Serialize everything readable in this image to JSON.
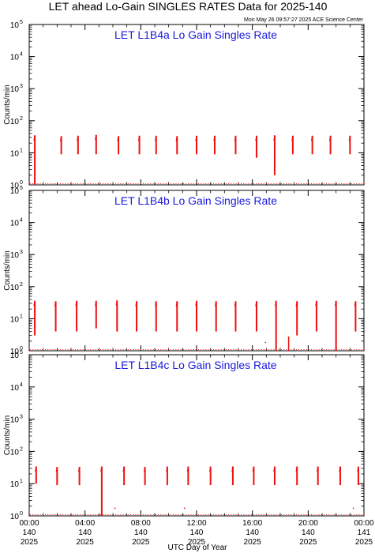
{
  "header": {
    "title": "LET ahead Lo-Gain SINGLES RATES Data for 2025-140",
    "timestamp": "Mon May 26 09:57:27 2025 ACE Science Center"
  },
  "x_axis": {
    "label": "UTC Day of Year",
    "ticks": [
      {
        "time": "00:00",
        "doy": "140",
        "year": "2025"
      },
      {
        "time": "04:00",
        "doy": "140",
        "year": "2025"
      },
      {
        "time": "08:00",
        "doy": "140",
        "year": "2025"
      },
      {
        "time": "12:00",
        "doy": "140",
        "year": "2025"
      },
      {
        "time": "16:00",
        "doy": "140",
        "year": "2025"
      },
      {
        "time": "20:00",
        "doy": "140",
        "year": "2025"
      },
      {
        "time": "00:00",
        "doy": "141",
        "year": "2025"
      }
    ]
  },
  "colors": {
    "data": "#ee1111",
    "title": "#1a1adf",
    "axis": "#000000"
  },
  "chart_data": [
    {
      "type": "line",
      "title": "LET L1B4a Lo Gain Singles Rate",
      "ylabel": "Counts/min",
      "yscale": "log",
      "ylim": [
        1,
        100000
      ],
      "xlim_hours": [
        0,
        24
      ],
      "x_tick_hours": [
        0,
        4,
        8,
        12,
        16,
        20,
        24
      ],
      "y_tick_labels": [
        "10^0",
        "10^1",
        "10^2",
        "10^3",
        "10^4",
        "10^5"
      ],
      "spikes": [
        {
          "hour": 0.4,
          "max": 35,
          "min": 1
        },
        {
          "hour": 2.3,
          "max": 33,
          "min": 9
        },
        {
          "hour": 3.5,
          "max": 34,
          "min": 9
        },
        {
          "hour": 4.8,
          "max": 36,
          "min": 9
        },
        {
          "hour": 6.4,
          "max": 33,
          "min": 9
        },
        {
          "hour": 7.9,
          "max": 34,
          "min": 9
        },
        {
          "hour": 9.1,
          "max": 34,
          "min": 9
        },
        {
          "hour": 10.6,
          "max": 33,
          "min": 9
        },
        {
          "hour": 12.0,
          "max": 34,
          "min": 9
        },
        {
          "hour": 13.3,
          "max": 34,
          "min": 9
        },
        {
          "hour": 14.8,
          "max": 34,
          "min": 9
        },
        {
          "hour": 16.3,
          "max": 34,
          "min": 7
        },
        {
          "hour": 17.6,
          "max": 35,
          "min": 2
        },
        {
          "hour": 18.9,
          "max": 34,
          "min": 9
        },
        {
          "hour": 20.3,
          "max": 34,
          "min": 9
        },
        {
          "hour": 21.6,
          "max": 34,
          "min": 9
        },
        {
          "hour": 23.0,
          "max": 34,
          "min": 9
        }
      ]
    },
    {
      "type": "line",
      "title": "LET L1B4b Lo Gain Singles Rate",
      "ylabel": "Counts/min",
      "yscale": "log",
      "ylim": [
        1,
        100000
      ],
      "xlim_hours": [
        0,
        24
      ],
      "x_tick_hours": [
        0,
        4,
        8,
        12,
        16,
        20,
        24
      ],
      "y_tick_labels": [
        "10^0",
        "10^1",
        "10^2",
        "10^3",
        "10^4",
        "10^5"
      ],
      "spikes": [
        {
          "hour": 0.4,
          "max": 36,
          "min": 3
        },
        {
          "hour": 1.9,
          "max": 35,
          "min": 4
        },
        {
          "hour": 3.4,
          "max": 36,
          "min": 4
        },
        {
          "hour": 4.8,
          "max": 36,
          "min": 5
        },
        {
          "hour": 6.3,
          "max": 37,
          "min": 4
        },
        {
          "hour": 7.7,
          "max": 35,
          "min": 4
        },
        {
          "hour": 9.1,
          "max": 35,
          "min": 4
        },
        {
          "hour": 10.6,
          "max": 35,
          "min": 4
        },
        {
          "hour": 12.0,
          "max": 36,
          "min": 4
        },
        {
          "hour": 13.4,
          "max": 35,
          "min": 4
        },
        {
          "hour": 14.8,
          "max": 35,
          "min": 4
        },
        {
          "hour": 16.3,
          "max": 35,
          "min": 4
        },
        {
          "hour": 17.7,
          "max": 36,
          "min": 1
        },
        {
          "hour": 19.2,
          "max": 35,
          "min": 3
        },
        {
          "hour": 20.6,
          "max": 36,
          "min": 4
        },
        {
          "hour": 22.0,
          "max": 36,
          "min": 1
        },
        {
          "hour": 23.4,
          "max": 35,
          "min": 4
        }
      ],
      "extra_points": [
        {
          "hour": 16.9,
          "value": 1.9
        },
        {
          "hour": 18.6,
          "value": 2.8
        }
      ]
    },
    {
      "type": "line",
      "title": "LET L1B4c Lo Gain Singles Rate",
      "ylabel": "Counts/min",
      "yscale": "log",
      "ylim": [
        1,
        100000
      ],
      "xlim_hours": [
        0,
        24
      ],
      "x_tick_hours": [
        0,
        4,
        8,
        12,
        16,
        20,
        24
      ],
      "y_tick_labels": [
        "10^0",
        "10^1",
        "10^2",
        "10^3",
        "10^4",
        "10^5"
      ],
      "spikes": [
        {
          "hour": 0.5,
          "max": 34,
          "min": 10
        },
        {
          "hour": 2.0,
          "max": 33,
          "min": 9
        },
        {
          "hour": 3.6,
          "max": 33,
          "min": 9
        },
        {
          "hour": 5.2,
          "max": 34,
          "min": 1
        },
        {
          "hour": 6.8,
          "max": 34,
          "min": 9
        },
        {
          "hour": 8.3,
          "max": 33,
          "min": 9
        },
        {
          "hour": 9.9,
          "max": 34,
          "min": 9
        },
        {
          "hour": 11.4,
          "max": 34,
          "min": 9
        },
        {
          "hour": 13.0,
          "max": 34,
          "min": 9
        },
        {
          "hour": 14.6,
          "max": 34,
          "min": 9
        },
        {
          "hour": 16.1,
          "max": 34,
          "min": 9
        },
        {
          "hour": 17.6,
          "max": 34,
          "min": 9
        },
        {
          "hour": 19.2,
          "max": 34,
          "min": 9
        },
        {
          "hour": 20.7,
          "max": 34,
          "min": 9
        },
        {
          "hour": 22.3,
          "max": 34,
          "min": 9
        },
        {
          "hour": 23.6,
          "max": 34,
          "min": 9
        }
      ],
      "extra_points": [
        {
          "hour": 6.1,
          "value": 1.8
        },
        {
          "hour": 11.1,
          "value": 1.8
        },
        {
          "hour": 23.2,
          "value": 1.8
        }
      ]
    }
  ]
}
